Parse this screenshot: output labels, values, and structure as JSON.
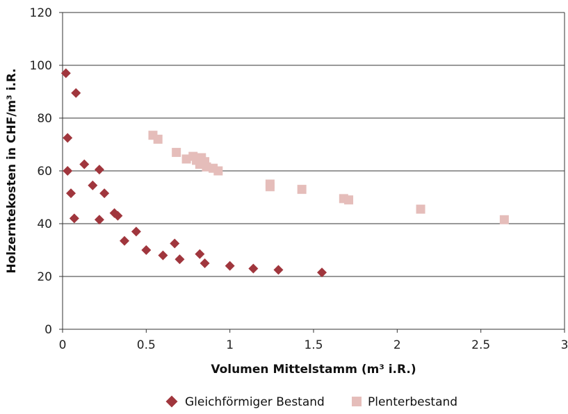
{
  "chart_data": {
    "type": "scatter",
    "title": "",
    "xlabel": "Volumen Mittelstamm (m³ i.R.)",
    "ylabel": "Holzerntekosten in CHF/m³ i.R.",
    "xlim": [
      0,
      3
    ],
    "ylim": [
      0,
      120
    ],
    "x_ticks": [
      "0",
      "0.5",
      "1",
      "1.5",
      "2",
      "2.5",
      "3"
    ],
    "y_ticks": [
      "0",
      "20",
      "40",
      "60",
      "80",
      "100",
      "120"
    ],
    "grid": "horizontal",
    "legend_position": "bottom",
    "series": [
      {
        "name": "Gleichförmiger Bestand",
        "marker": "diamond",
        "color": "#A0363D",
        "points": [
          [
            0.02,
            97
          ],
          [
            0.08,
            89.5
          ],
          [
            0.03,
            72.5
          ],
          [
            0.03,
            60
          ],
          [
            0.05,
            51.5
          ],
          [
            0.07,
            42
          ],
          [
            0.13,
            62.5
          ],
          [
            0.18,
            54.5
          ],
          [
            0.22,
            60.5
          ],
          [
            0.22,
            41.5
          ],
          [
            0.25,
            51.5
          ],
          [
            0.31,
            44
          ],
          [
            0.33,
            43
          ],
          [
            0.37,
            33.5
          ],
          [
            0.44,
            37
          ],
          [
            0.5,
            30
          ],
          [
            0.6,
            28
          ],
          [
            0.67,
            32.5
          ],
          [
            0.7,
            26.5
          ],
          [
            0.82,
            28.5
          ],
          [
            0.85,
            25
          ],
          [
            1.0,
            24
          ],
          [
            1.14,
            23
          ],
          [
            1.29,
            22.5
          ],
          [
            1.55,
            21.5
          ]
        ]
      },
      {
        "name": "Plenterbestand",
        "marker": "square",
        "color": "#E5BDBA",
        "points": [
          [
            0.54,
            73.5
          ],
          [
            0.57,
            72
          ],
          [
            0.68,
            67
          ],
          [
            0.74,
            64.5
          ],
          [
            0.78,
            65.5
          ],
          [
            0.8,
            64
          ],
          [
            0.82,
            62.5
          ],
          [
            0.83,
            65
          ],
          [
            0.85,
            63.5
          ],
          [
            0.86,
            61.5
          ],
          [
            0.9,
            61
          ],
          [
            0.93,
            60
          ],
          [
            1.24,
            54
          ],
          [
            1.24,
            55
          ],
          [
            1.43,
            53
          ],
          [
            1.68,
            49.5
          ],
          [
            1.71,
            49
          ],
          [
            2.14,
            45.5
          ],
          [
            2.64,
            41.5
          ]
        ]
      }
    ]
  }
}
